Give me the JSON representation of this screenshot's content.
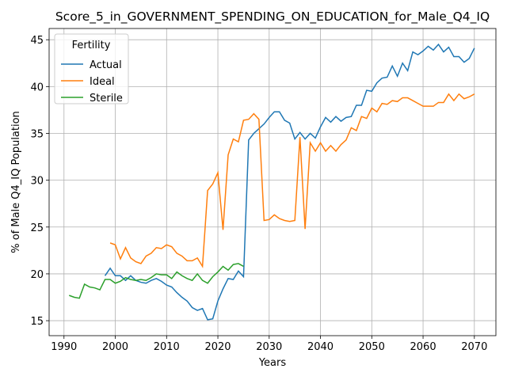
{
  "chart_data": {
    "type": "line",
    "title": "Score_5_in_GOVERNMENT_SPENDING_ON_EDUCATION_for_Male_Q4_IQ",
    "xlabel": "Years",
    "ylabel": "% of Male Q4_IQ Population",
    "legend_title": "Fertility",
    "legend_loc": "upper left",
    "grid": true,
    "x": [
      1991,
      1992,
      1993,
      1994,
      1995,
      1996,
      1997,
      1998,
      1999,
      2000,
      2001,
      2002,
      2003,
      2004,
      2005,
      2006,
      2007,
      2008,
      2009,
      2010,
      2011,
      2012,
      2013,
      2014,
      2015,
      2016,
      2017,
      2018,
      2019,
      2020,
      2021,
      2022,
      2023,
      2024,
      2025,
      2026,
      2027,
      2028,
      2029,
      2030,
      2031,
      2032,
      2033,
      2034,
      2035,
      2036,
      2037,
      2038,
      2039,
      2040,
      2041,
      2042,
      2043,
      2044,
      2045,
      2046,
      2047,
      2048,
      2049,
      2050,
      2051,
      2052,
      2053,
      2054,
      2055,
      2056,
      2057,
      2058,
      2059,
      2060,
      2061,
      2062,
      2063,
      2064,
      2065,
      2066,
      2067,
      2068,
      2069,
      2070
    ],
    "series": [
      {
        "name": "Actual",
        "color": "#1f77b4",
        "values": [
          null,
          null,
          null,
          null,
          null,
          null,
          null,
          19.8,
          20.6,
          19.8,
          19.8,
          19.3,
          19.8,
          19.3,
          19.1,
          19.0,
          19.3,
          19.5,
          19.2,
          18.8,
          18.6,
          18.0,
          17.5,
          17.1,
          16.4,
          16.1,
          16.3,
          15.1,
          15.2,
          17.1,
          18.4,
          19.5,
          19.4,
          20.3,
          19.7,
          34.3,
          35.0,
          35.5,
          36.0,
          36.7,
          37.3,
          37.3,
          36.4,
          36.1,
          34.4,
          35.1,
          34.4,
          35.0,
          34.5,
          35.7,
          36.7,
          36.2,
          36.8,
          36.3,
          36.7,
          36.8,
          38.0,
          38.0,
          39.6,
          39.5,
          40.4,
          40.9,
          41.0,
          42.2,
          41.1,
          42.5,
          41.7,
          43.7,
          43.4,
          43.8,
          44.3,
          43.9,
          44.5,
          43.7,
          44.2,
          43.2,
          43.2,
          42.6,
          43.0,
          44.1
        ]
      },
      {
        "name": "Ideal",
        "color": "#ff7f0e",
        "values": [
          null,
          null,
          null,
          null,
          null,
          null,
          null,
          null,
          23.3,
          23.1,
          21.6,
          22.8,
          21.7,
          21.3,
          21.1,
          21.9,
          22.2,
          22.8,
          22.7,
          23.1,
          22.9,
          22.2,
          21.9,
          21.4,
          21.4,
          21.7,
          20.8,
          28.9,
          29.6,
          30.8,
          24.7,
          32.7,
          34.4,
          34.1,
          36.4,
          36.5,
          37.1,
          36.5,
          25.7,
          25.8,
          26.3,
          25.9,
          25.7,
          25.6,
          25.7,
          34.6,
          24.8,
          34.0,
          33.1,
          34.0,
          33.1,
          33.7,
          33.1,
          33.8,
          34.3,
          35.6,
          35.3,
          36.8,
          36.6,
          37.7,
          37.3,
          38.2,
          38.1,
          38.5,
          38.4,
          38.8,
          38.8,
          38.5,
          38.2,
          37.9,
          37.9,
          37.9,
          38.3,
          38.3,
          39.2,
          38.5,
          39.2,
          38.7,
          38.9,
          39.2
        ]
      },
      {
        "name": "Sterile",
        "color": "#2ca02c",
        "values": [
          17.7,
          17.5,
          17.4,
          18.9,
          18.6,
          18.5,
          18.3,
          19.4,
          19.4,
          19.0,
          19.2,
          19.6,
          19.4,
          19.3,
          19.4,
          19.3,
          19.6,
          20.0,
          19.9,
          19.9,
          19.5,
          20.2,
          19.8,
          19.5,
          19.3,
          20.0,
          19.3,
          19.0,
          19.7,
          20.2,
          20.8,
          20.4,
          21.0,
          21.1,
          20.8,
          null,
          null,
          null,
          null,
          null,
          null,
          null,
          null,
          null,
          null,
          null,
          null,
          null,
          null,
          null,
          null,
          null,
          null,
          null,
          null,
          null,
          null,
          null,
          null,
          null,
          null,
          null,
          null,
          null,
          null,
          null,
          null,
          null,
          null,
          null,
          null,
          null,
          null,
          null,
          null,
          null,
          null,
          null,
          null,
          null
        ]
      }
    ],
    "xlim": [
      1987.1,
      2074.2
    ],
    "ylim": [
      13.4,
      46.2
    ],
    "xticks": [
      1990,
      2000,
      2010,
      2020,
      2030,
      2040,
      2050,
      2060,
      2070
    ],
    "yticks": [
      15,
      20,
      25,
      30,
      35,
      40,
      45
    ]
  }
}
